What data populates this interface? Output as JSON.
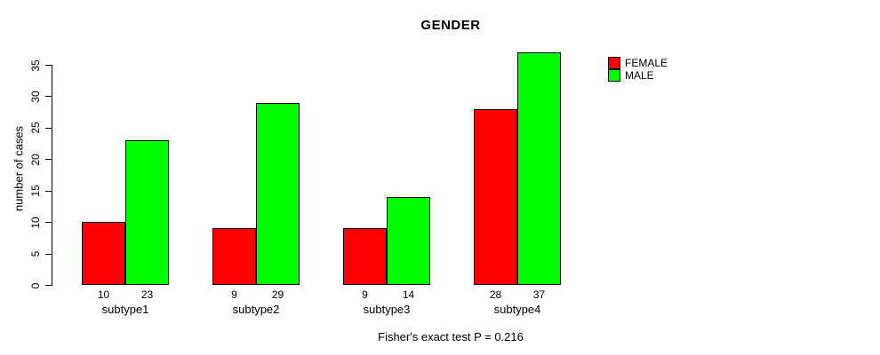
{
  "title": "GENDER",
  "caption": "Fisher's exact test P = 0.216",
  "chart_data": {
    "type": "bar",
    "title": "GENDER",
    "categories": [
      "subtype1",
      "subtype2",
      "subtype3",
      "subtype4"
    ],
    "series": [
      {
        "name": "FEMALE",
        "color": "#ff0000",
        "values": [
          10,
          9,
          9,
          28
        ]
      },
      {
        "name": "MALE",
        "color": "#00ff00",
        "values": [
          23,
          29,
          14,
          37
        ]
      }
    ],
    "xlabel": "",
    "ylabel": "number of cases",
    "ylim": [
      0,
      35
    ],
    "yticks": [
      0,
      5,
      10,
      15,
      20,
      25,
      30,
      35
    ],
    "bar_value_labels": true,
    "grid": false,
    "legend_position": "topright",
    "annotation": "Fisher's exact test P = 0.216"
  }
}
